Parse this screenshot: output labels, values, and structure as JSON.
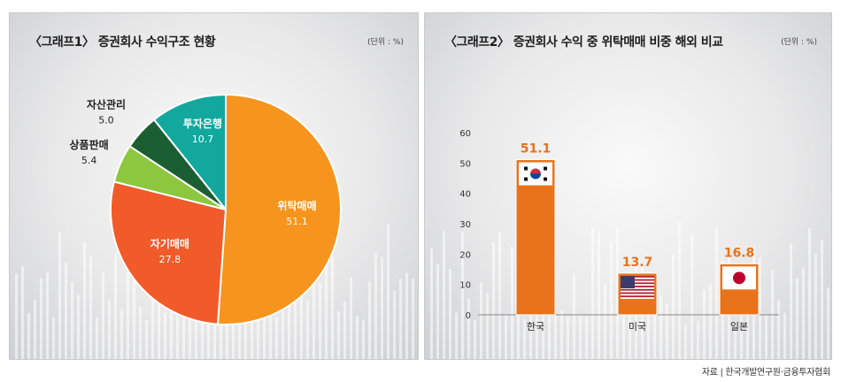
{
  "source_text": "자료 | 한국개발연구원·금융투자협회",
  "colors": {
    "wiTak": "#f7941d",
    "jagi": "#f15a29",
    "sangpum": "#8dc63f",
    "jasan": "#1b5e32",
    "tuja": "#12a89d",
    "bar": "#e8731a",
    "value_label": "#e8731a"
  },
  "chart_data": [
    {
      "type": "pie",
      "title": "〈그래프1〉 증권회사 수익구조 현황",
      "unit": "(단위 : %)",
      "slices": [
        {
          "label": "위탁매매",
          "value": 51.1,
          "color": "#f7941d",
          "label_color": "#ffffff"
        },
        {
          "label": "자기매매",
          "value": 27.8,
          "color": "#f15a29",
          "label_color": "#ffffff"
        },
        {
          "label": "상품판매",
          "value": 5.4,
          "color": "#8dc63f",
          "label_color": "#222222"
        },
        {
          "label": "자산관리",
          "value": 5.0,
          "color": "#1b5e32",
          "label_color": "#222222"
        },
        {
          "label": "투자은행",
          "value": 10.7,
          "color": "#12a89d",
          "label_color": "#ffffff"
        }
      ],
      "value_labels": [
        "51.1",
        "27.8",
        "5.4",
        "5.0",
        "10.7"
      ]
    },
    {
      "type": "bar",
      "title": "〈그래프2〉 증권회사 수익 중 위탁매매 비중 해외 비교",
      "unit": "(단위 : %)",
      "categories": [
        "한국",
        "미국",
        "일본"
      ],
      "values": [
        51.1,
        13.7,
        16.8
      ],
      "value_labels": [
        "51.1",
        "13.7",
        "16.8"
      ],
      "flags": [
        "korea-flag",
        "usa-flag",
        "japan-flag"
      ],
      "ylim": [
        0,
        60
      ],
      "yticks": [
        "0",
        "10",
        "20",
        "30",
        "40",
        "50",
        "60"
      ]
    }
  ]
}
